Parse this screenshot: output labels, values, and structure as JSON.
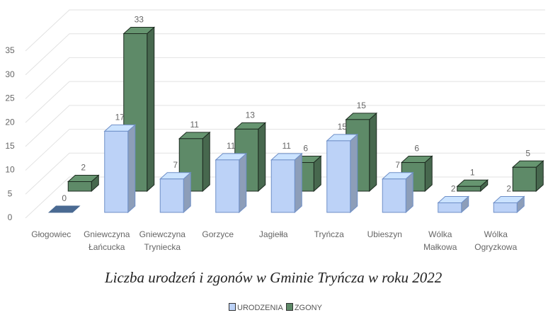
{
  "chart_data": {
    "type": "bar",
    "title": "Liczba urodzeń i zgonów w Gminie Tryńcza w roku 2022",
    "categories": [
      "Głogowiec",
      "Gniewczyna Łańcucka",
      "Gniewczyna Tryniecka",
      "Gorzyce",
      "Jagiełła",
      "Tryńcza",
      "Ubieszyn",
      "Wólka Małkowa",
      "Wólka Ogryzkowa"
    ],
    "series": [
      {
        "name": "URODZENIA",
        "color": "#bcd2f7",
        "values": [
          0,
          17,
          7,
          11,
          11,
          15,
          7,
          2,
          2
        ]
      },
      {
        "name": "ZGONY",
        "color": "#5e8a68",
        "values": [
          2,
          33,
          11,
          13,
          6,
          15,
          6,
          1,
          5
        ]
      }
    ],
    "ylim": [
      0,
      35
    ],
    "yticks": [
      0,
      5,
      10,
      15,
      20,
      25,
      30,
      35
    ],
    "grid": true,
    "legend": "bottom"
  }
}
